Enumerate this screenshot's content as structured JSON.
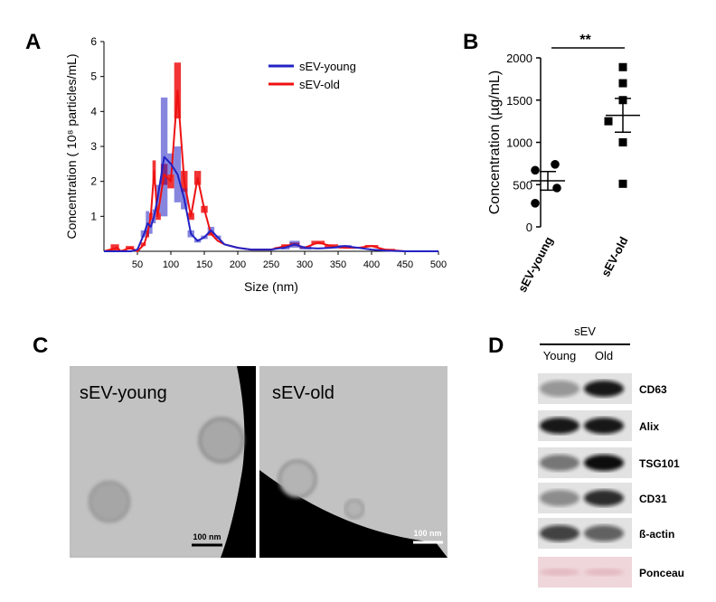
{
  "chart_data": [
    {
      "label": "A",
      "type": "line",
      "x_label": "Size (nm)",
      "y_label": "Concentration ( 10⁸ particles/mL)",
      "x": [
        0,
        20,
        25,
        40,
        50,
        60,
        65,
        70,
        75,
        80,
        90,
        100,
        110,
        120,
        130,
        140,
        150,
        160,
        170,
        180,
        200,
        220,
        250,
        260,
        270,
        285,
        300,
        320,
        340,
        360,
        380,
        400,
        420,
        450,
        500
      ],
      "xlim": [
        0,
        500
      ],
      "xticks": [
        50,
        100,
        150,
        200,
        250,
        300,
        350,
        400,
        450,
        500
      ],
      "ylim": [
        0,
        6
      ],
      "yticks": [
        1,
        2,
        3,
        4,
        5,
        6
      ],
      "series": [
        {
          "name": "sEV-young",
          "color": "#2222c4",
          "values": [
            0,
            0,
            0,
            0,
            0.05,
            0.5,
            0.8,
            0.7,
            1.0,
            1.5,
            2.7,
            2.5,
            2.2,
            1.5,
            0.5,
            0.3,
            0.4,
            0.6,
            0.4,
            0.2,
            0.1,
            0.05,
            0.05,
            0.08,
            0.1,
            0.2,
            0.1,
            0.08,
            0.1,
            0.15,
            0.1,
            0.05,
            0.02,
            0,
            0
          ],
          "errors": [
            0,
            0,
            0,
            0,
            0,
            0.1,
            0.35,
            0.2,
            0.2,
            0.4,
            1.7,
            0.3,
            0.8,
            0.3,
            0.1,
            0.05,
            0.05,
            0.1,
            0.05,
            0,
            0,
            0,
            0,
            0,
            0.05,
            0.1,
            0.05,
            0,
            0.02,
            0.03,
            0.02,
            0,
            0,
            0,
            0
          ]
        },
        {
          "name": "sEV-old",
          "color": "#ee1111",
          "values": [
            0,
            0.1,
            0,
            0.1,
            0,
            0.2,
            0.5,
            1.0,
            2.3,
            1.0,
            2.2,
            2.0,
            4.6,
            2.0,
            1.0,
            2.1,
            1.2,
            0.5,
            0.3,
            0.2,
            0.1,
            0.05,
            0.05,
            0.1,
            0.15,
            0.2,
            0.1,
            0.25,
            0.15,
            0.1,
            0.1,
            0.15,
            0.05,
            0,
            0
          ],
          "errors": [
            0,
            0.1,
            0,
            0.05,
            0,
            0.05,
            0.1,
            0.1,
            0.3,
            0.1,
            0.3,
            0.2,
            0.8,
            0.3,
            0.1,
            0.2,
            0.1,
            0.05,
            0,
            0,
            0,
            0,
            0,
            0.02,
            0.05,
            0.05,
            0.02,
            0.05,
            0.05,
            0.02,
            0.02,
            0.03,
            0.02,
            0,
            0
          ]
        }
      ]
    },
    {
      "label": "B",
      "type": "scatter",
      "y_label": "Concentration (µg/mL)",
      "categories": [
        "sEV-young",
        "sEV-old"
      ],
      "ylim": [
        0,
        2000
      ],
      "yticks": [
        0,
        500,
        1000,
        1500,
        2000
      ],
      "series": [
        {
          "marker": "circle",
          "values": [
            740,
            670,
            460,
            280
          ],
          "mean": 545,
          "sem": 110
        },
        {
          "marker": "square",
          "values": [
            1890,
            1700,
            1500,
            1250,
            1000,
            510
          ],
          "mean": 1320,
          "sem": 200
        }
      ],
      "significance": "**"
    }
  ],
  "micrographs": {
    "label": "C",
    "panels": [
      {
        "title": "sEV-young",
        "scale_bar": "100 nm"
      },
      {
        "title": "sEV-old",
        "scale_bar": "100 nm"
      }
    ]
  },
  "western_blot": {
    "label": "D",
    "group": "sEV",
    "lanes": [
      "Young",
      "Old"
    ],
    "rows": [
      "CD63",
      "Alix",
      "TSG101",
      "CD31",
      "ß-actin",
      "Ponceau"
    ]
  }
}
